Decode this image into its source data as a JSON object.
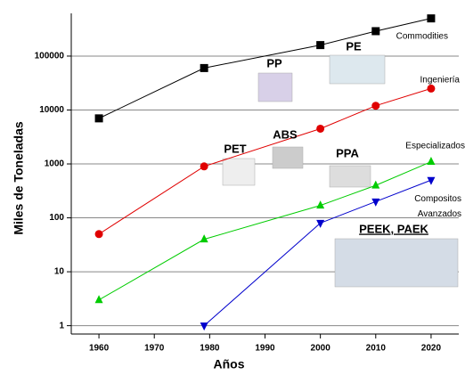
{
  "chart_data": {
    "type": "line",
    "x_label": "Años",
    "y_label": "Miles de Toneladas",
    "log_scale": true,
    "grid": true,
    "x": [
      1960,
      1979,
      2000,
      2010,
      2020
    ],
    "xlim": [
      1955,
      2025
    ],
    "xticks": [
      1960,
      1970,
      1980,
      1990,
      2000,
      2010,
      2020
    ],
    "ylim": [
      0.7,
      620000
    ],
    "yticks": [
      1,
      10,
      100,
      1000,
      10000,
      100000
    ],
    "series": [
      {
        "name": "Commodities",
        "color": "#000000",
        "marker": "square",
        "values": [
          7000,
          60000,
          160000,
          290000,
          500000
        ]
      },
      {
        "name": "Ingeniería",
        "color": "#e00000",
        "marker": "circle",
        "values": [
          50,
          900,
          4500,
          12000,
          25000
        ]
      },
      {
        "name": "Especializados",
        "color": "#00cc00",
        "marker": "triangle-up",
        "values": [
          3,
          40,
          170,
          400,
          1100
        ]
      },
      {
        "name": "Compositos Avanzados",
        "color": "#0000cc",
        "marker": "triangle-down",
        "values": [
          null,
          1,
          80,
          200,
          500
        ]
      }
    ],
    "annotations": [
      "PP",
      "PE",
      "PET",
      "ABS",
      "PPA",
      "PEEK,  PAEK"
    ]
  }
}
